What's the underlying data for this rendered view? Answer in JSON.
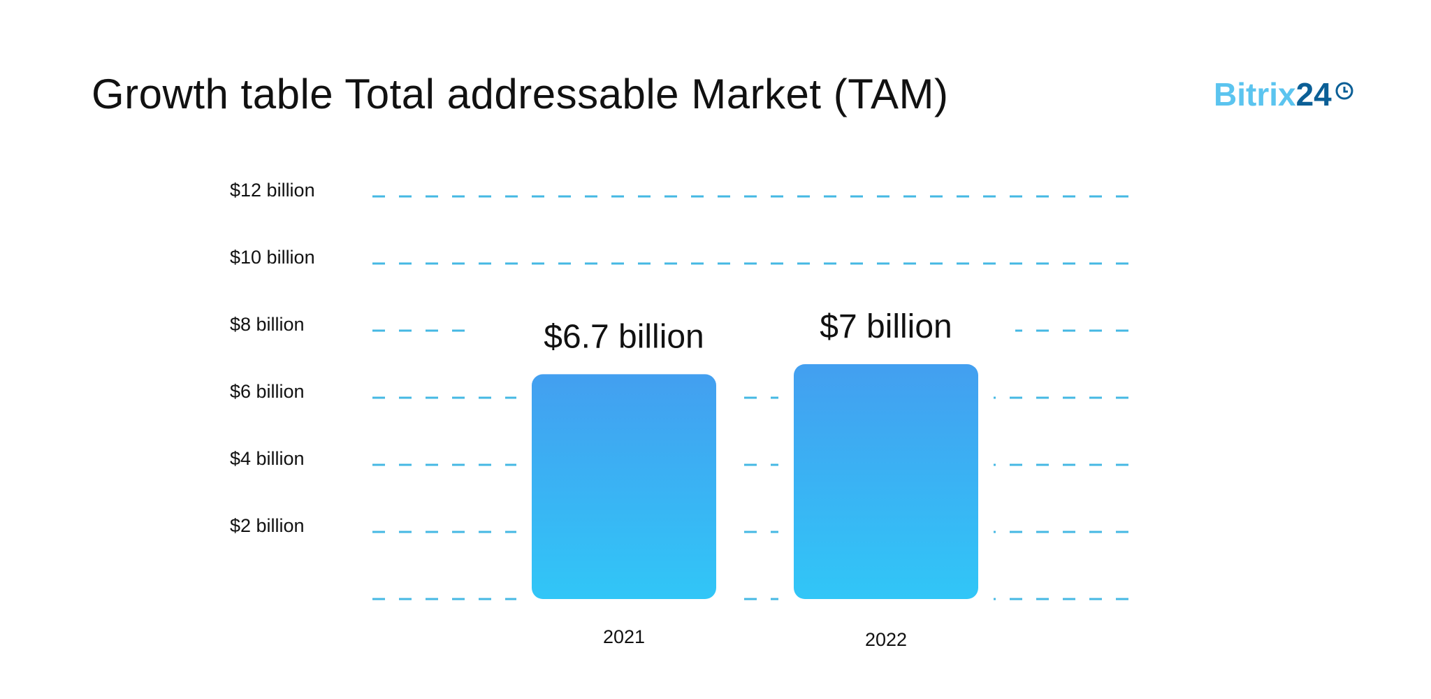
{
  "title": "Growth table Total addressable Market (TAM)",
  "logo": {
    "text_light": "Bitrix",
    "text_dark": "24",
    "icon": "clock-icon"
  },
  "chart_data": {
    "type": "bar",
    "title": "Growth table Total addressable Market (TAM)",
    "categories": [
      "2021",
      "2022"
    ],
    "values": [
      6.7,
      7
    ],
    "data_labels": [
      "$6.7 billion",
      "$7 billion"
    ],
    "ylim": [
      0,
      12
    ],
    "yticks": [
      2,
      4,
      6,
      8,
      10,
      12
    ],
    "ytick_labels": [
      "$2 billion",
      "$4 billion",
      "$6 billion",
      "$8 billion",
      "$10 billion",
      "$12 billion"
    ],
    "grid": true,
    "grid_style": "dashed",
    "colors": {
      "bar_top": "#439ff0",
      "bar_bottom": "#31c6f7",
      "grid": "#45b8e3"
    }
  }
}
